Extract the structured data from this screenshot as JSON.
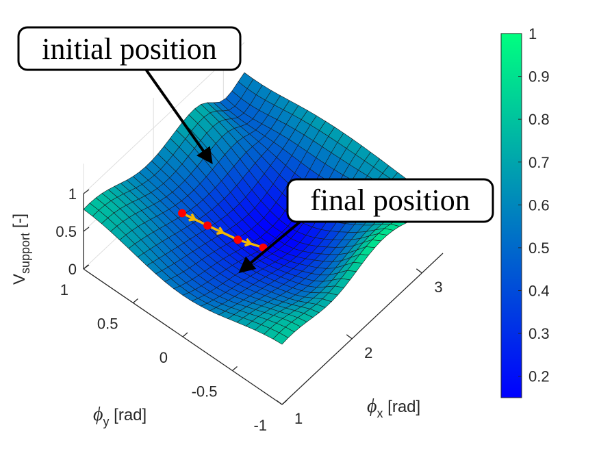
{
  "chart_data": {
    "type": "surface",
    "title": "",
    "zlabel": {
      "main": "V",
      "sub": "support",
      "unit": " [-]"
    },
    "xlabel": {
      "symbol": "ϕ",
      "sub": "x",
      "unit": " [rad]"
    },
    "ylabel": {
      "symbol": "ϕ",
      "sub": "y",
      "unit": " [rad]"
    },
    "x_ticks": [
      "1",
      "2",
      "3"
    ],
    "y_ticks": [
      "1",
      "0.5",
      "0",
      "-0.5",
      "-1"
    ],
    "z_ticks": [
      "1",
      "0.5",
      "0"
    ],
    "xlim": [
      1,
      3.3
    ],
    "ylim": [
      -1,
      1
    ],
    "zlim": [
      0,
      1
    ],
    "colorbar": {
      "colormap": "winter",
      "ticks": [
        "1",
        "0.9",
        "0.8",
        "0.7",
        "0.6",
        "0.5",
        "0.4",
        "0.3",
        "0.2"
      ],
      "range": [
        0.15,
        1
      ],
      "color_low": "#0000ff",
      "color_high": "#00ff80"
    },
    "path": {
      "color": "#f5b800",
      "marker_color": "#ff0000",
      "points": [
        {
          "x": 1.7,
          "y": 0.5,
          "z": 0.58
        },
        {
          "x": 1.85,
          "y": 0.35,
          "z": 0.42
        },
        {
          "x": 2.0,
          "y": 0.15,
          "z": 0.28
        },
        {
          "x": 2.15,
          "y": 0.0,
          "z": 0.18
        }
      ]
    },
    "annotations": [
      {
        "text": "initial position",
        "target": "first-path-point"
      },
      {
        "text": "final position",
        "target": "last-path-point"
      }
    ]
  }
}
